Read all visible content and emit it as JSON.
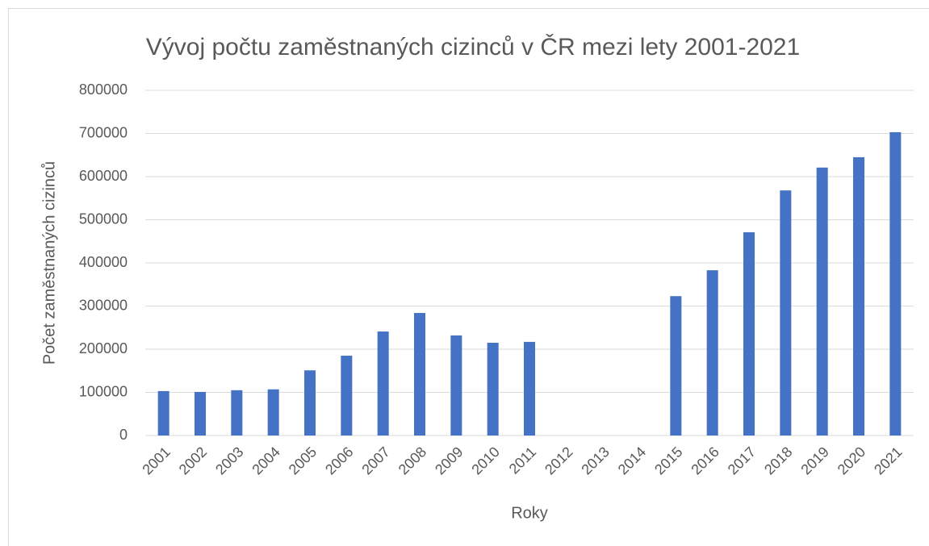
{
  "chart_data": {
    "type": "bar",
    "title": "Vývoj počtu zaměstnaných cizinců v ČR mezi lety 2001-2021",
    "x_label": "Roky",
    "y_label": "Počet zaměstnaných cizinců",
    "categories": [
      "2001",
      "2002",
      "2003",
      "2004",
      "2005",
      "2006",
      "2007",
      "2008",
      "2009",
      "2010",
      "2011",
      "2012",
      "2013",
      "2014",
      "2015",
      "2016",
      "2017",
      "2018",
      "2019",
      "2020",
      "2021"
    ],
    "values": [
      103000,
      101000,
      105000,
      107000,
      151000,
      185000,
      241000,
      284000,
      232000,
      215000,
      217000,
      null,
      null,
      null,
      323000,
      383000,
      471000,
      568000,
      621000,
      645000,
      703000
    ],
    "color": "#4472c4",
    "ylim": [
      0,
      800000
    ],
    "yticks": [
      0,
      100000,
      200000,
      300000,
      400000,
      500000,
      600000,
      700000,
      800000
    ],
    "grid": true
  }
}
